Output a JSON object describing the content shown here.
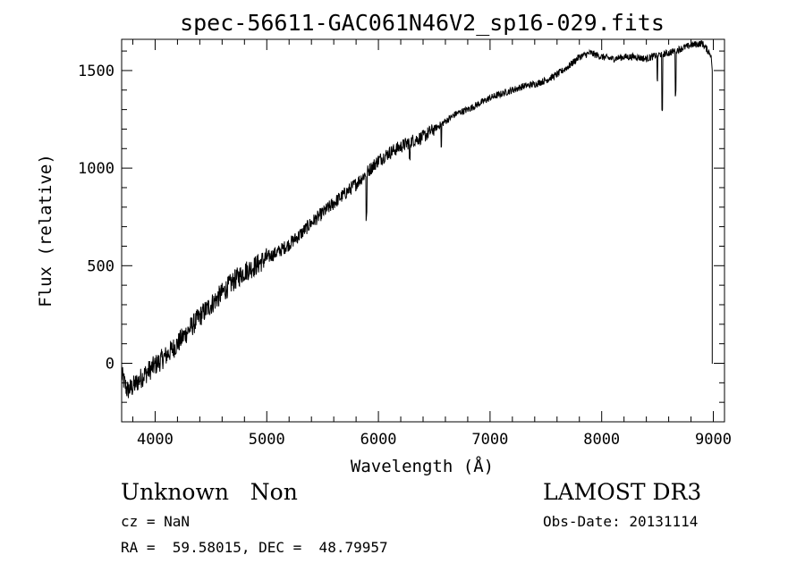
{
  "chart_data": {
    "type": "line",
    "title": "spec-56611-GAC061N46V2_sp16-029.fits",
    "xlabel": "Wavelength (Å)",
    "ylabel": "Flux (relative)",
    "xlim": [
      3700,
      9100
    ],
    "ylim": [
      -300,
      1660
    ],
    "xticks": [
      4000,
      5000,
      6000,
      7000,
      8000,
      9000
    ],
    "yticks": [
      0,
      500,
      1000,
      1500
    ],
    "series": [
      {
        "name": "flux",
        "anchors_x": [
          3700,
          3750,
          3800,
          3900,
          4000,
          4100,
          4200,
          4300,
          4400,
          4500,
          4600,
          4700,
          4800,
          4900,
          5000,
          5100,
          5200,
          5300,
          5400,
          5500,
          5600,
          5700,
          5800,
          5900,
          6000,
          6100,
          6200,
          6300,
          6400,
          6500,
          6600,
          6700,
          6800,
          6900,
          7000,
          7100,
          7200,
          7300,
          7400,
          7500,
          7600,
          7700,
          7800,
          7900,
          8000,
          8100,
          8200,
          8300,
          8400,
          8500,
          8600,
          8700,
          8800,
          8900,
          8980
        ],
        "anchors_y": [
          -60,
          -140,
          -120,
          -60,
          -10,
          40,
          100,
          170,
          240,
          300,
          360,
          420,
          470,
          500,
          540,
          570,
          610,
          660,
          720,
          770,
          820,
          870,
          920,
          980,
          1040,
          1080,
          1110,
          1140,
          1160,
          1200,
          1240,
          1280,
          1300,
          1330,
          1360,
          1380,
          1400,
          1420,
          1430,
          1450,
          1480,
          1520,
          1570,
          1590,
          1570,
          1560,
          1570,
          1570,
          1560,
          1580,
          1590,
          1610,
          1630,
          1640,
          1580
        ],
        "absorption_lines": [
          {
            "x": 5893,
            "depth": 230
          },
          {
            "x": 6280,
            "depth": 80
          },
          {
            "x": 6563,
            "depth": 120
          },
          {
            "x": 8498,
            "depth": 140
          },
          {
            "x": 8542,
            "depth": 300
          },
          {
            "x": 8662,
            "depth": 220
          }
        ],
        "end_drop": {
          "x": 8990,
          "y": 0
        }
      }
    ]
  },
  "info": {
    "class_label": "Unknown   Non",
    "survey_label": "LAMOST DR3",
    "cz_label": "cz = NaN",
    "obs_date_label": "Obs-Date: 20131114",
    "coords_label": "RA =  59.58015, DEC =  48.79957"
  }
}
